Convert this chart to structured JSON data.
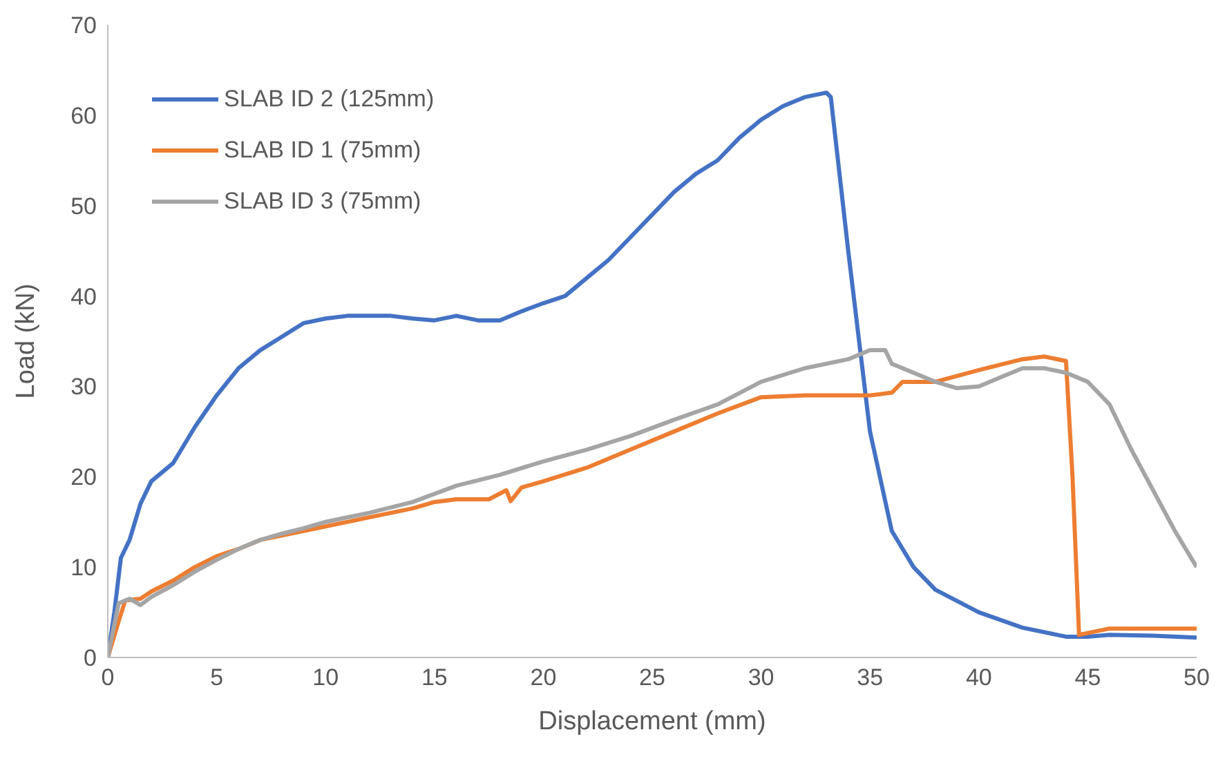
{
  "chart_data": {
    "type": "line",
    "xlabel": "Displacement (mm)",
    "ylabel": "Load (kN)",
    "xlim": [
      0,
      50
    ],
    "xticks": [
      0,
      5,
      10,
      15,
      20,
      25,
      30,
      35,
      40,
      45,
      50
    ],
    "ylim": [
      0,
      70
    ],
    "yticks": [
      0,
      10,
      20,
      30,
      40,
      50,
      60,
      70
    ],
    "legend": "top left",
    "marker": "none",
    "line_style": "solid",
    "series": [
      {
        "name": "SLAB ID 2 (125mm)",
        "color": "#4472c4",
        "x": [
          0,
          0.3,
          0.6,
          1,
          1.5,
          2,
          3,
          4,
          5,
          6,
          7,
          8,
          9,
          10,
          11,
          13,
          14,
          15,
          16,
          17,
          18,
          19,
          20,
          21,
          22,
          23,
          24,
          25,
          26,
          27,
          28,
          29,
          30,
          31,
          32,
          33,
          33.2,
          34,
          35,
          36,
          37,
          38,
          40,
          42,
          44,
          45,
          46,
          48,
          50
        ],
        "values": [
          0,
          5,
          11,
          13,
          17,
          19.5,
          21.5,
          25.5,
          29,
          32,
          34,
          35.5,
          37,
          37.5,
          37.8,
          37.8,
          37.5,
          37.3,
          37.8,
          37.3,
          37.3,
          38.3,
          39.2,
          40,
          42,
          44,
          46.5,
          49,
          51.5,
          53.5,
          55,
          57.5,
          59.5,
          61,
          62,
          62.5,
          62,
          45,
          25,
          14,
          10,
          7.5,
          5,
          3.3,
          2.3,
          2.3,
          2.5,
          2.4,
          2.2
        ]
      },
      {
        "name": "SLAB ID 1 (75mm)",
        "color": "#ed7d31",
        "x": [
          0,
          0.5,
          0.8,
          1.5,
          2,
          3,
          4,
          5,
          6,
          7,
          8,
          10,
          12,
          14,
          15,
          16,
          17.5,
          18.3,
          18.5,
          19,
          20,
          22,
          24,
          26,
          28,
          30,
          32,
          35,
          36,
          36.5,
          38,
          40,
          42,
          43,
          44,
          44.3,
          44.6,
          45,
          46,
          50
        ],
        "values": [
          0,
          4,
          6.3,
          6.5,
          7.3,
          8.5,
          10,
          11.2,
          12,
          13,
          13.5,
          14.5,
          15.5,
          16.5,
          17.2,
          17.5,
          17.5,
          18.5,
          17.3,
          18.8,
          19.5,
          21,
          23,
          25,
          27,
          28.8,
          29,
          29,
          29.3,
          30.5,
          30.5,
          31.8,
          33,
          33.3,
          32.8,
          20,
          2.5,
          2.7,
          3.2,
          3.2
        ]
      },
      {
        "name": "SLAB ID 3 (75mm)",
        "color": "#a5a5a5",
        "x": [
          0,
          0.5,
          1,
          1.5,
          2,
          3,
          4,
          5,
          6,
          7,
          8,
          9,
          10,
          12,
          14,
          16,
          18,
          20,
          22,
          24,
          26,
          28,
          30,
          32,
          34,
          35,
          35.7,
          36,
          37,
          38,
          39,
          40,
          41,
          42,
          43,
          44,
          45,
          46,
          47,
          48,
          49,
          50
        ],
        "values": [
          0,
          6,
          6.5,
          5.8,
          6.7,
          8,
          9.5,
          10.8,
          12,
          13,
          13.7,
          14.3,
          15,
          16,
          17.2,
          19,
          20.2,
          21.7,
          23,
          24.5,
          26.3,
          28,
          30.5,
          32,
          33,
          34,
          34,
          32.5,
          31.5,
          30.5,
          29.8,
          30,
          31,
          32,
          32,
          31.5,
          30.5,
          28,
          23,
          18.5,
          14,
          10
        ]
      }
    ]
  }
}
